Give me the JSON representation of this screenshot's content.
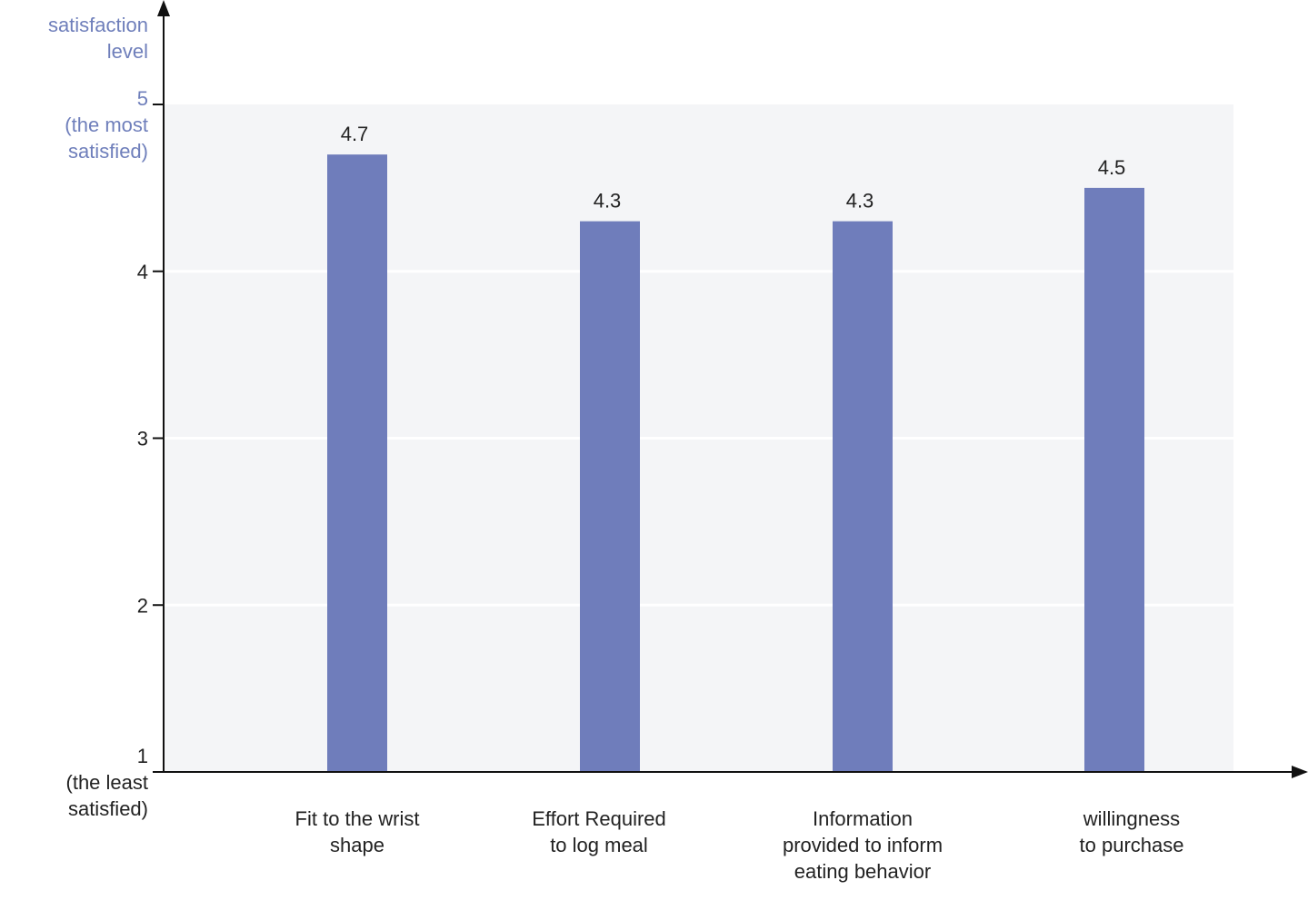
{
  "chart_data": {
    "type": "bar",
    "ylabel_lines": [
      "satisfaction",
      "level"
    ],
    "categories": [
      [
        "Fit to the wrist",
        "shape"
      ],
      [
        "Effort Required",
        "to log meal"
      ],
      [
        "Information",
        "provided to inform",
        "eating behavior"
      ],
      [
        "willingness",
        "to purchase"
      ]
    ],
    "values": [
      4.7,
      4.3,
      4.3,
      4.5
    ],
    "data_labels": [
      "4.7",
      "4.3",
      "4.3",
      "4.5"
    ],
    "ylim": [
      1,
      5
    ],
    "y_ticks": [
      {
        "value": 5,
        "lines": [
          "5",
          "(the most",
          "satisfied)"
        ],
        "accent": true
      },
      {
        "value": 4,
        "lines": [
          "4"
        ],
        "accent": false
      },
      {
        "value": 3,
        "lines": [
          "3"
        ],
        "accent": false
      },
      {
        "value": 2,
        "lines": [
          "2"
        ],
        "accent": false
      },
      {
        "value": 1,
        "lines": [
          "1",
          "(the least",
          "satisfied)"
        ],
        "accent": false
      }
    ],
    "grid": true,
    "colors": {
      "bar": "#6f7dbb",
      "plot_background": "#f4f5f7",
      "grid": "#ffffff",
      "axis": "#111111",
      "accent_text": "#6f7fbb"
    }
  }
}
